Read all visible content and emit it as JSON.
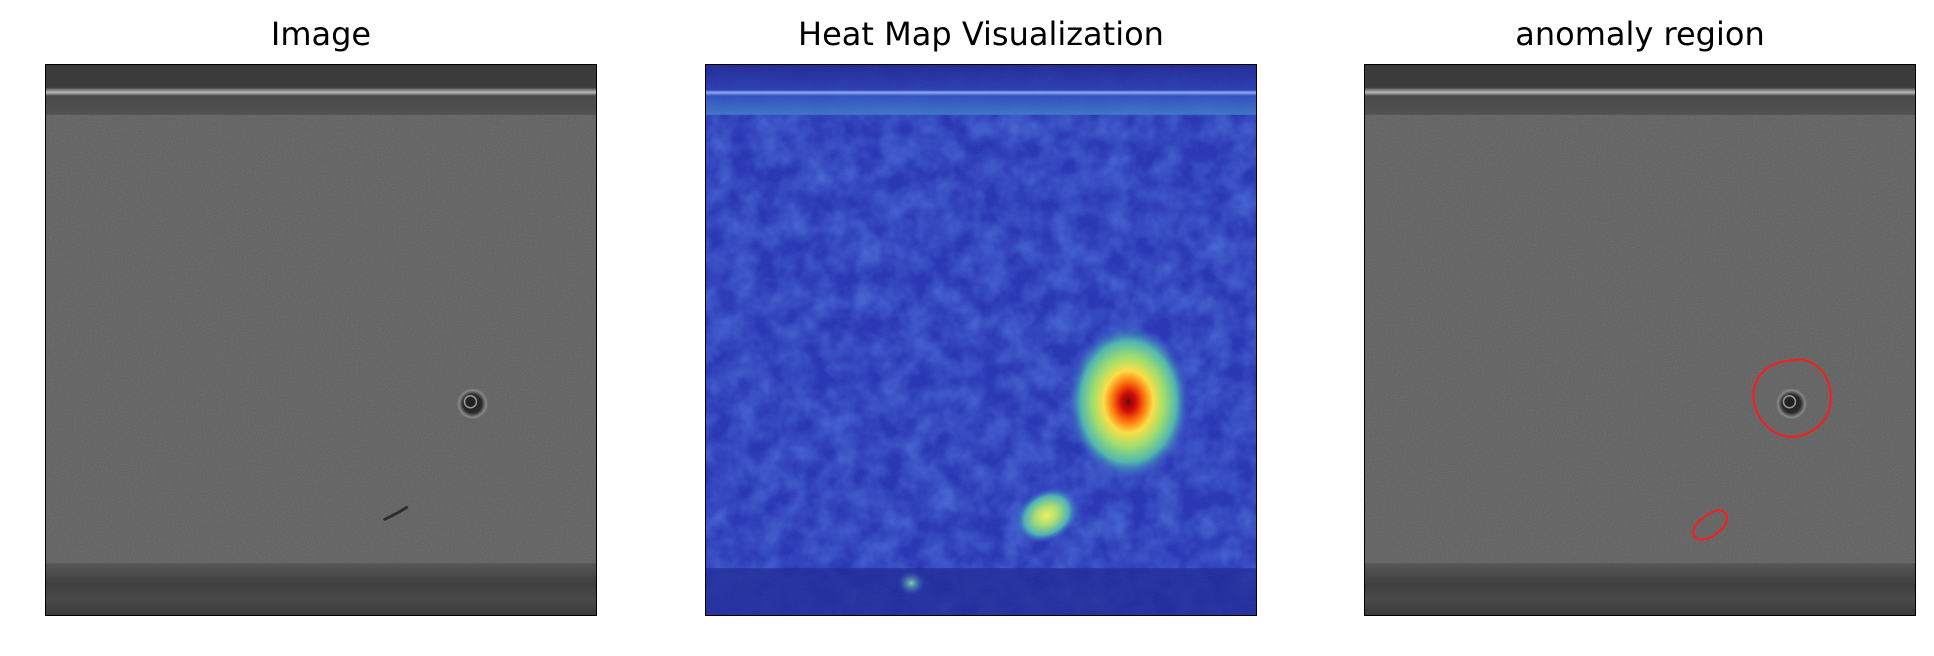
{
  "panels": [
    {
      "title": "Image",
      "content": "grayscale-surface-image"
    },
    {
      "title": "Heat Map Visualization",
      "content": "anomaly-heatmap-overlay"
    },
    {
      "title": "anomaly region",
      "content": "contoured-anomaly-image"
    }
  ],
  "colors": {
    "contour": "#ff1a1a",
    "heatmap_low": "#1e2fb0",
    "heatmap_high": "#c00000"
  }
}
